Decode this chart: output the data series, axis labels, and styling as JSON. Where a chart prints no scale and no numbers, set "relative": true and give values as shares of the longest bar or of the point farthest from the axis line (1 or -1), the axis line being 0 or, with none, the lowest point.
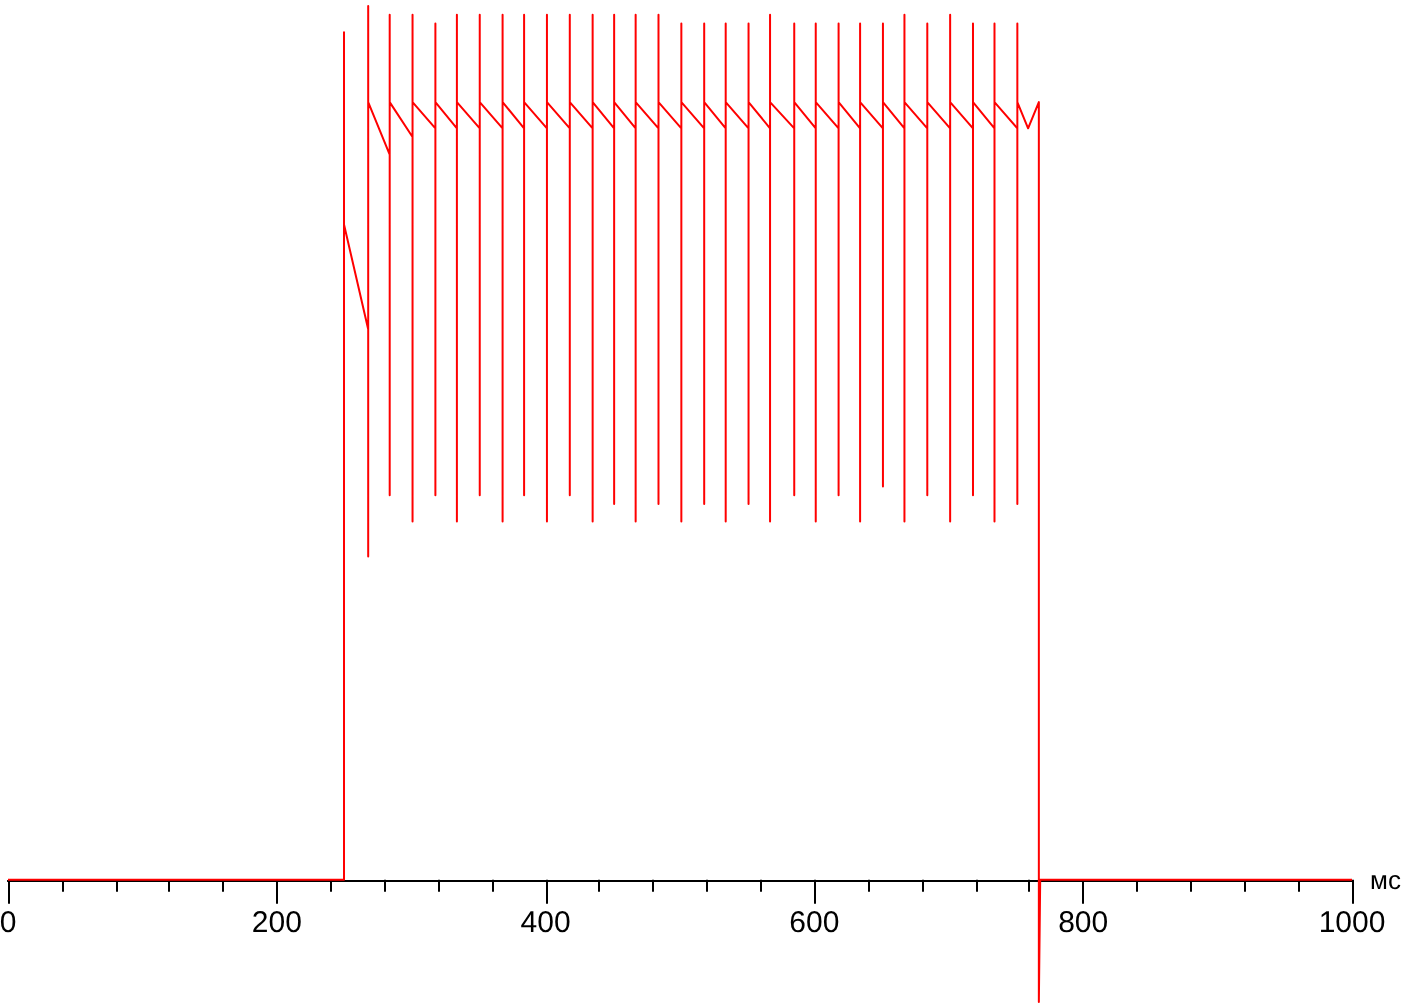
{
  "chart_data": {
    "type": "line",
    "relative": true,
    "xlabel": "мс",
    "color": "#ff0000",
    "marker": "none",
    "line_style": "solid",
    "xlim": [
      0,
      1000
    ],
    "xticks": [
      0,
      {
        "value": 40,
        "label": null
      },
      {
        "value": 80,
        "label": null
      },
      {
        "value": 120,
        "label": null
      },
      {
        "value": 160,
        "label": null
      },
      200,
      {
        "value": 240,
        "label": null
      },
      {
        "value": 280,
        "label": null
      },
      {
        "value": 320,
        "label": null
      },
      {
        "value": 360,
        "label": null
      },
      400,
      {
        "value": 440,
        "label": null
      },
      {
        "value": 480,
        "label": null
      },
      {
        "value": 520,
        "label": null
      },
      {
        "value": 560,
        "label": null
      },
      600,
      {
        "value": 640,
        "label": null
      },
      {
        "value": 680,
        "label": null
      },
      {
        "value": 720,
        "label": null
      },
      {
        "value": 760,
        "label": null
      },
      800,
      {
        "value": 840,
        "label": null
      },
      {
        "value": 880,
        "label": null
      },
      {
        "value": 920,
        "label": null
      },
      {
        "value": 960,
        "label": null
      },
      1000
    ],
    "x": [
      0,
      250,
      250,
      250,
      268,
      268,
      268,
      268,
      284,
      284,
      284,
      284,
      301,
      301,
      301,
      301,
      318,
      318,
      318,
      318,
      334,
      334,
      334,
      334,
      351,
      351,
      351,
      351,
      368,
      368,
      368,
      368,
      384,
      384,
      384,
      384,
      401,
      401,
      401,
      401,
      418,
      418,
      418,
      418,
      435,
      435,
      435,
      435,
      451,
      451,
      451,
      451,
      467,
      467,
      467,
      467,
      484,
      484,
      484,
      484,
      501,
      501,
      501,
      501,
      518,
      518,
      518,
      518,
      534,
      534,
      534,
      534,
      551,
      551,
      551,
      551,
      567,
      567,
      567,
      567,
      585,
      585,
      585,
      585,
      601,
      601,
      601,
      601,
      618,
      618,
      618,
      618,
      634,
      634,
      634,
      634,
      651,
      651,
      651,
      651,
      667,
      667,
      667,
      667,
      684,
      684,
      684,
      684,
      701,
      701,
      701,
      701,
      718,
      718,
      718,
      718,
      734,
      734,
      734,
      734,
      751,
      751,
      751,
      751,
      759,
      767,
      767,
      768,
      1000
    ],
    "values": [
      0,
      0,
      0.97,
      0.75,
      0.63,
      0.37,
      1,
      0.89,
      0.83,
      0.44,
      0.99,
      0.89,
      0.85,
      0.41,
      0.99,
      0.89,
      0.86,
      0.44,
      0.98,
      0.89,
      0.86,
      0.41,
      0.99,
      0.89,
      0.86,
      0.44,
      0.99,
      0.89,
      0.86,
      0.41,
      0.99,
      0.89,
      0.86,
      0.44,
      0.99,
      0.89,
      0.86,
      0.41,
      0.99,
      0.89,
      0.86,
      0.44,
      0.99,
      0.89,
      0.86,
      0.41,
      0.99,
      0.89,
      0.86,
      0.43,
      0.99,
      0.89,
      0.86,
      0.41,
      0.99,
      0.89,
      0.86,
      0.43,
      0.99,
      0.89,
      0.86,
      0.41,
      0.98,
      0.89,
      0.86,
      0.43,
      0.98,
      0.89,
      0.86,
      0.41,
      0.98,
      0.89,
      0.86,
      0.43,
      0.98,
      0.89,
      0.86,
      0.41,
      0.99,
      0.89,
      0.86,
      0.44,
      0.98,
      0.89,
      0.86,
      0.41,
      0.98,
      0.89,
      0.86,
      0.44,
      0.98,
      0.89,
      0.86,
      0.41,
      0.98,
      0.89,
      0.86,
      0.45,
      0.98,
      0.89,
      0.86,
      0.41,
      0.99,
      0.89,
      0.86,
      0.44,
      0.98,
      0.89,
      0.86,
      0.41,
      0.99,
      0.89,
      0.86,
      0.44,
      0.98,
      0.89,
      0.86,
      0.41,
      0.98,
      0.89,
      0.86,
      0.43,
      0.98,
      0.89,
      0.86,
      0.89,
      -0.14,
      0,
      0
    ]
  }
}
